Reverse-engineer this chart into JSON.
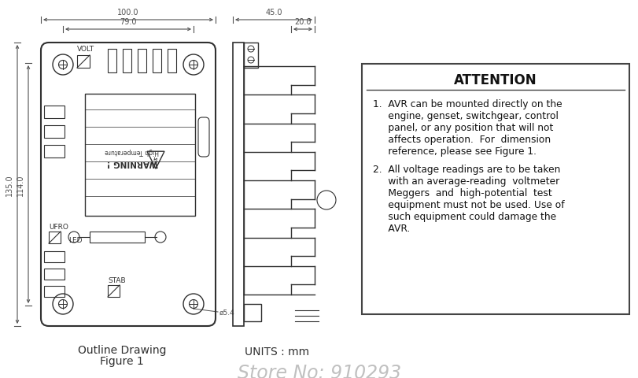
{
  "bg_color": "#ffffff",
  "line_color": "#303030",
  "dim_color": "#505050",
  "attention_title": "ATTENTION",
  "dim_100": "100.0",
  "dim_79": "79.0",
  "dim_135": "135.0",
  "dim_114": "114.0",
  "dim_45": "45.0",
  "dim_20": "20.0",
  "dim_phi54": "ø5.4",
  "label_volt": "VOLT",
  "label_ufro": "UFRO",
  "label_led": "LED",
  "label_stab": "STAB",
  "label_warning": "WARNING !",
  "label_high_temp": "High Temperature",
  "caption1": "Outline Drawing",
  "caption2": "Figure 1",
  "units": "UNITS : mm",
  "store": "Store No: 910293",
  "item1_lines": [
    "1.  AVR can be mounted directly on the",
    "     engine, genset, switchgear, control",
    "     panel, or any position that will not",
    "     affects operation.  For  dimension",
    "     reference, please see Figure 1."
  ],
  "item2_lines": [
    "2.  All voltage readings are to be taken",
    "     with an average-reading  voltmeter",
    "     Meggers  and  high-potential  test",
    "     equipment must not be used. Use of",
    "     such equipment could damage the",
    "     AVR."
  ]
}
